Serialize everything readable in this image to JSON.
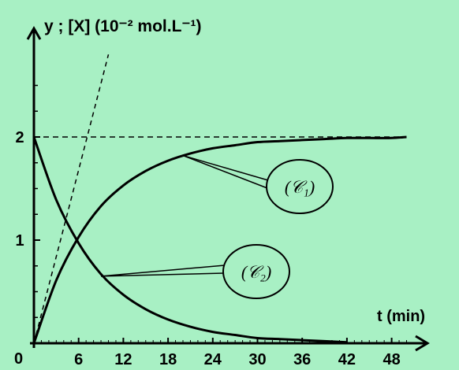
{
  "chart_data": {
    "type": "line",
    "ylabel": "y ; [X]  (10⁻² mol.L⁻¹)",
    "xlabel": "t (min)",
    "xlim": [
      0,
      54
    ],
    "ylim": [
      0,
      2.6
    ],
    "x_ticks": [
      "6",
      "12",
      "18",
      "24",
      "30",
      "36",
      "42",
      "48"
    ],
    "y_ticks": [
      "1",
      "2"
    ],
    "origin_label": "0",
    "asymptote": 2,
    "series": [
      {
        "name": "(𝒞₁)",
        "x": [
          0,
          3,
          6,
          9,
          12,
          15,
          18,
          21,
          24,
          27,
          30,
          33,
          36,
          39,
          42,
          45,
          48,
          50
        ],
        "y": [
          0,
          0.61,
          1.03,
          1.33,
          1.53,
          1.67,
          1.77,
          1.84,
          1.89,
          1.92,
          1.95,
          1.96,
          1.97,
          1.98,
          1.99,
          1.99,
          1.99,
          2.0
        ]
      },
      {
        "name": "(𝒞₂)",
        "x": [
          0,
          3,
          6,
          9,
          12,
          15,
          18,
          21,
          24,
          27,
          30,
          33,
          36,
          39,
          42
        ],
        "y": [
          2,
          1.39,
          0.97,
          0.67,
          0.47,
          0.33,
          0.23,
          0.16,
          0.11,
          0.08,
          0.05,
          0.04,
          0.03,
          0.02,
          0.01
        ]
      }
    ],
    "tangent_at_origin": {
      "x": [
        0,
        10
      ],
      "y": [
        0,
        2.8
      ]
    },
    "annotations": [
      {
        "text": "(𝒞₁)",
        "points_to": {
          "x": 20,
          "y": 1.82
        }
      },
      {
        "text": "(𝒞₂)",
        "points_to": {
          "x": 9,
          "y": 0.65
        }
      }
    ]
  }
}
